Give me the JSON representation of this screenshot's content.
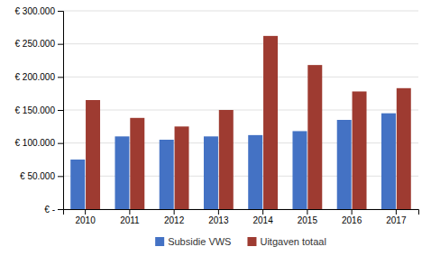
{
  "chart_data": {
    "type": "bar",
    "categories": [
      "2010",
      "2011",
      "2012",
      "2013",
      "2014",
      "2015",
      "2016",
      "2017"
    ],
    "series": [
      {
        "name": "Subsidie VWS",
        "color": "#4472C4",
        "values": [
          75000,
          110000,
          105000,
          110000,
          112000,
          118000,
          135000,
          145000
        ]
      },
      {
        "name": "Uitgaven totaal",
        "color": "#9E3B31",
        "values": [
          165000,
          138000,
          125000,
          150000,
          262000,
          218000,
          178000,
          183000
        ]
      }
    ],
    "ylim": [
      0,
      300000
    ],
    "yticks": [
      {
        "value": 0,
        "label": "€ -"
      },
      {
        "value": 50000,
        "label": "€ 50.000"
      },
      {
        "value": 100000,
        "label": "€ 100.000"
      },
      {
        "value": 150000,
        "label": "€ 150.000"
      },
      {
        "value": 200000,
        "label": "€ 200.000"
      },
      {
        "value": 250000,
        "label": "€ 250.000"
      },
      {
        "value": 300000,
        "label": "€ 300.000"
      }
    ],
    "grid": true,
    "legend": "bottom"
  }
}
